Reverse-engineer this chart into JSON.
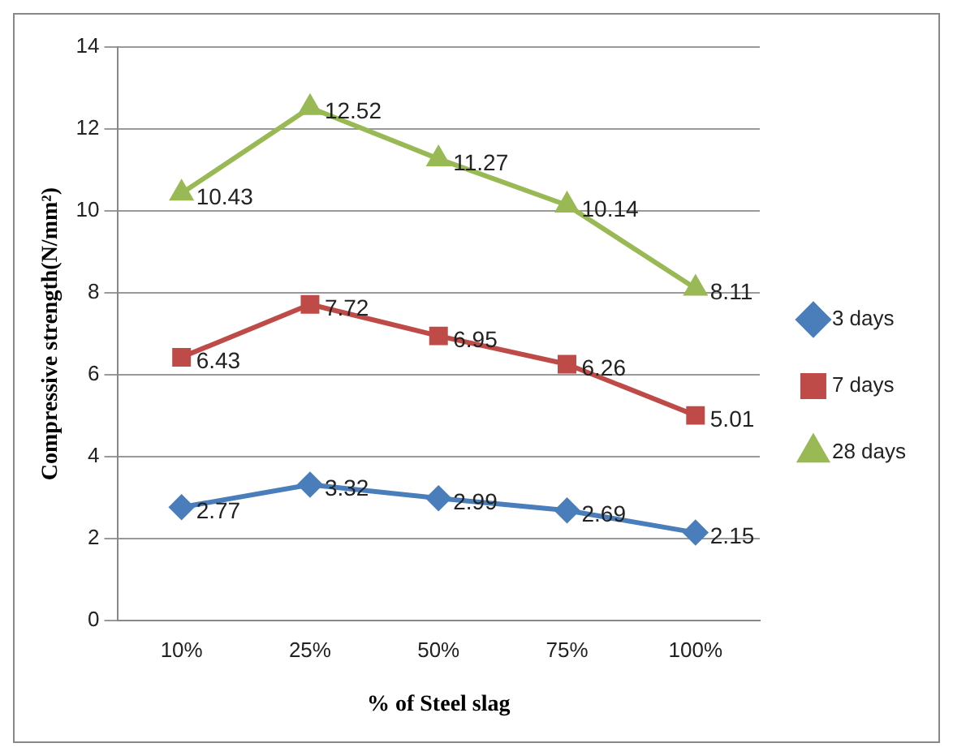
{
  "chart_data": {
    "type": "line",
    "xlabel": "% of Steel slag",
    "ylabel": "Compressive strength(N/mm²)",
    "categories": [
      "10%",
      "25%",
      "50%",
      "75%",
      "100%"
    ],
    "series": [
      {
        "name": "3 days",
        "color": "#4a7ebb",
        "marker": "diamond",
        "values": [
          2.77,
          3.32,
          2.99,
          2.69,
          2.15
        ]
      },
      {
        "name": "7 days",
        "color": "#be4b48",
        "marker": "square",
        "values": [
          6.43,
          7.72,
          6.95,
          6.26,
          5.01
        ]
      },
      {
        "name": "28 days",
        "color": "#98b954",
        "marker": "triangle",
        "values": [
          10.43,
          12.52,
          11.27,
          10.14,
          8.11
        ]
      }
    ],
    "ylim": [
      0,
      14
    ],
    "yticks": [
      0,
      2,
      4,
      6,
      8,
      10,
      12,
      14
    ],
    "grid": "y",
    "legend": "right",
    "data_labels": true
  }
}
